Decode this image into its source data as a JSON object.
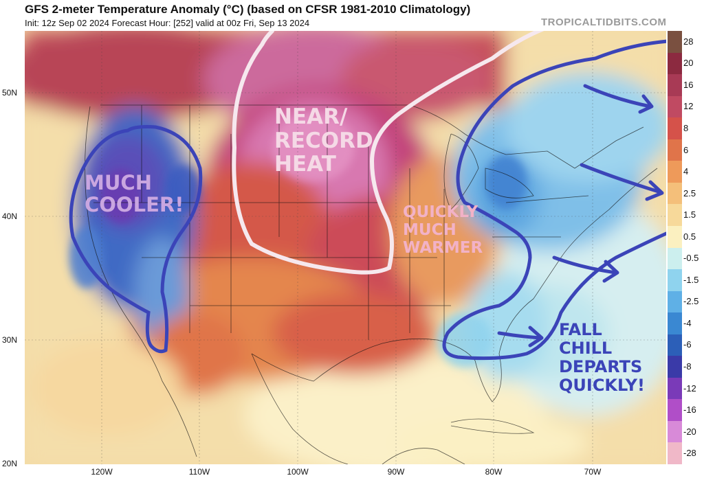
{
  "header": {
    "title": "GFS 2-meter Temperature Anomaly (°C) (based on CFSR 1981-2010 Climatology)",
    "subtitle": "Init: 12z Sep 02 2024   Forecast Hour: [252]   valid at 00z Fri, Sep 13 2024",
    "watermark": "TROPICALTIDBITS.COM"
  },
  "map": {
    "lon_labels": [
      "120W",
      "110W",
      "100W",
      "90W",
      "80W",
      "70W"
    ],
    "lat_labels": [
      "50N",
      "40N",
      "30N",
      "20N"
    ],
    "annotations": {
      "near_record": "NEAR/\nRECORD\nHEAT",
      "much_cooler": "MUCH\nCOOLER!",
      "quickly_warmer": "QUICKLY\nMUCH\nWARMER",
      "fall_chill": "FALL\nCHILL\nDEPARTS\nQUICKLY!"
    },
    "annotation_colors": {
      "white_outline": "#f6e8ee",
      "blue_outline": "#3b44b8",
      "near_record_text": "#f5d9e6",
      "much_cooler_text": "#c9a6e0",
      "quickly_warmer_text": "#f2b2c7",
      "fall_chill_text": "#3b44b8"
    }
  },
  "colorbar": {
    "labels": [
      "28",
      "20",
      "16",
      "12",
      "8",
      "6",
      "4",
      "2.5",
      "1.5",
      "0.5",
      "-0.5",
      "-1.5",
      "-2.5",
      "-4",
      "-6",
      "-8",
      "-12",
      "-16",
      "-20",
      "-28"
    ],
    "colors": [
      "#7a5040",
      "#8c2a40",
      "#a83a55",
      "#c04a62",
      "#d5524a",
      "#e0744a",
      "#ee9a5a",
      "#f4bf7a",
      "#f7d99a",
      "#fbf0c0",
      "#ccefee",
      "#8fd3ee",
      "#5fb0e6",
      "#3a88d2",
      "#2c5fb8",
      "#3a3aa8",
      "#7a3ab8",
      "#b04ec8",
      "#d88ad8",
      "#f0b8c8"
    ]
  }
}
